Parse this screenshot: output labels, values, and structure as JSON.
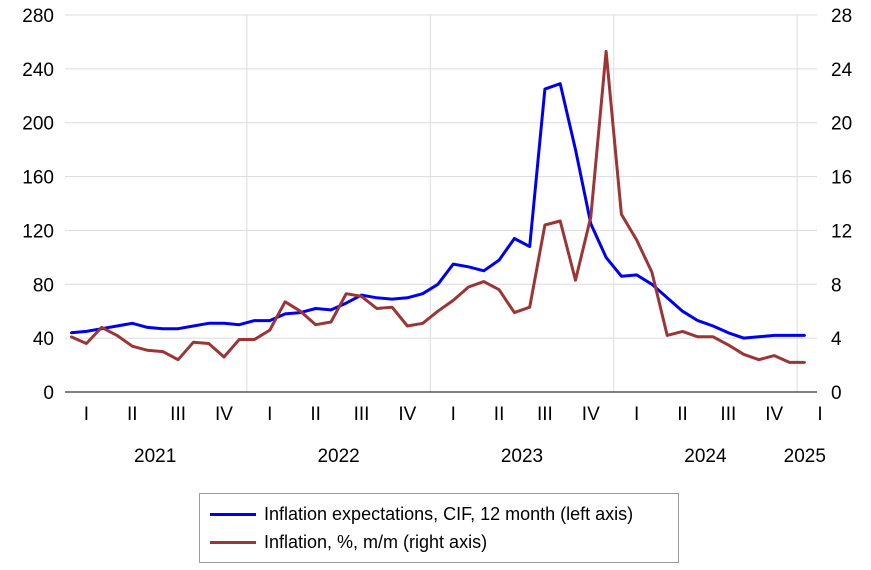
{
  "chart_data": {
    "type": "line",
    "title": "",
    "xlabel": "",
    "ylabel": "",
    "y_left": {
      "range": [
        0,
        280
      ],
      "ticks": [
        "0",
        "40",
        "80",
        "120",
        "160",
        "200",
        "240",
        "280"
      ]
    },
    "y_right": {
      "range": [
        0,
        28
      ],
      "ticks": [
        "0",
        "4",
        "8",
        "12",
        "16",
        "20",
        "24",
        "28"
      ]
    },
    "grid": true,
    "legend_position": "bottom",
    "x_quarter_labels": [
      "I",
      "II",
      "III",
      "IV",
      "I",
      "II",
      "III",
      "IV",
      "I",
      "II",
      "III",
      "IV",
      "I",
      "II",
      "III",
      "IV",
      "I"
    ],
    "x_year_labels": [
      "2021",
      "2022",
      "2023",
      "2024",
      "2025"
    ],
    "x_dates": [
      "2021-01",
      "2021-02",
      "2021-03",
      "2021-04",
      "2021-05",
      "2021-06",
      "2021-07",
      "2021-08",
      "2021-09",
      "2021-10",
      "2021-11",
      "2021-12",
      "2022-01",
      "2022-02",
      "2022-03",
      "2022-04",
      "2022-05",
      "2022-06",
      "2022-07",
      "2022-08",
      "2022-09",
      "2022-10",
      "2022-11",
      "2022-12",
      "2023-01",
      "2023-02",
      "2023-03",
      "2023-04",
      "2023-05",
      "2023-06",
      "2023-07",
      "2023-08",
      "2023-09",
      "2023-10",
      "2023-11",
      "2023-12",
      "2024-01",
      "2024-02",
      "2024-03",
      "2024-04",
      "2024-05",
      "2024-06",
      "2024-07",
      "2024-08",
      "2024-09",
      "2024-10",
      "2024-11",
      "2024-12",
      "2025-01"
    ],
    "series": [
      {
        "name": "Inflation expectations, CIF, 12 month (left axis)",
        "axis": "left",
        "color": "#0000ee",
        "values": [
          44,
          45,
          47,
          49,
          51,
          48,
          47,
          47,
          49,
          51,
          51,
          50,
          53,
          53,
          58,
          59,
          62,
          61,
          66,
          72,
          70,
          69,
          70,
          73,
          80,
          95,
          93,
          90,
          98,
          114,
          108,
          225,
          229,
          180,
          125,
          100,
          86,
          87,
          80,
          70,
          60,
          53,
          49,
          44,
          40,
          41,
          42,
          42,
          42
        ]
      },
      {
        "name": "Inflation, %, m/m (right axis)",
        "axis": "right",
        "color": "#9c3535",
        "values": [
          4.1,
          3.6,
          4.8,
          4.2,
          3.4,
          3.1,
          3.0,
          2.4,
          3.7,
          3.6,
          2.6,
          3.9,
          3.9,
          4.6,
          6.7,
          6.0,
          5.0,
          5.2,
          7.3,
          7.1,
          6.2,
          6.3,
          4.9,
          5.1,
          6.0,
          6.8,
          7.8,
          8.2,
          7.6,
          5.9,
          6.3,
          12.4,
          12.7,
          8.3,
          13.0,
          25.3,
          13.2,
          11.3,
          8.9,
          4.2,
          4.5,
          4.1,
          4.1,
          3.5,
          2.8,
          2.4,
          2.7,
          2.2,
          2.2
        ]
      }
    ]
  }
}
